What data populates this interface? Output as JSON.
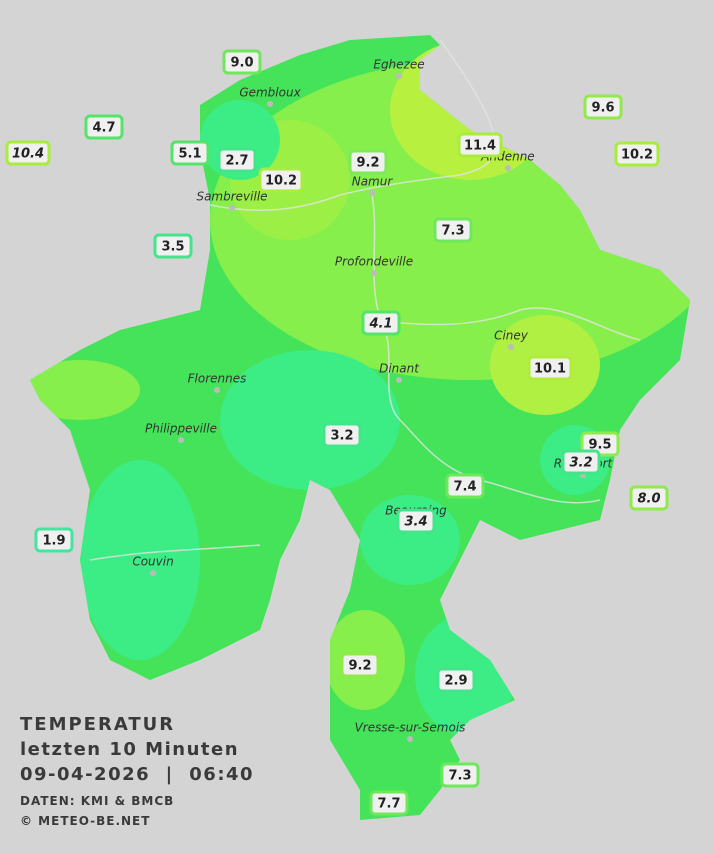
{
  "legend": {
    "title": "TEMPERATUR",
    "period": "letzten 10 Minuten",
    "datetime": "09-04-2026  |  06:40",
    "source": "DATEN: KMI & BMCB",
    "copyright": "© METEO-BE.NET"
  },
  "cities": [
    "Eghezee",
    "Gembloux",
    "Andenne",
    "Namur",
    "Sambreville",
    "Profondeville",
    "Ciney",
    "Dinant",
    "Florennes",
    "Philippeville",
    "Rochefort",
    "Beauraing",
    "Couvin",
    "Vresse-sur-Semois"
  ],
  "stations": [
    {
      "value": "9.0",
      "color": "#6ee85a"
    },
    {
      "value": "4.7",
      "color": "#55e36a"
    },
    {
      "value": "10.4",
      "color": "#a8ec3c",
      "italic": true
    },
    {
      "value": "5.1",
      "color": "#55e36a"
    },
    {
      "value": "2.7",
      "color": "#44e58a"
    },
    {
      "value": "10.2",
      "color": "#a8ec3c"
    },
    {
      "value": "9.2",
      "color": "#7ee85a"
    },
    {
      "value": "11.4",
      "color": "#a8ec3c"
    },
    {
      "value": "9.6",
      "color": "#8fea4a"
    },
    {
      "value": "10.2",
      "color": "#a8ec3c"
    },
    {
      "value": "3.5",
      "color": "#44e58a"
    },
    {
      "value": "7.3",
      "color": "#6ee85a"
    },
    {
      "value": "4.1",
      "color": "#55e36a",
      "italic": true
    },
    {
      "value": "10.1",
      "color": "#b0ec3c"
    },
    {
      "value": "3.2",
      "color": "#44e58a"
    },
    {
      "value": "9.5",
      "color": "#8fea4a"
    },
    {
      "value": "3.2",
      "color": "#44e58a",
      "italic": true
    },
    {
      "value": "7.4",
      "color": "#6ee85a"
    },
    {
      "value": "8.0",
      "color": "#8fea4a",
      "italic": true
    },
    {
      "value": "3.4",
      "color": "#44e58a",
      "italic": true
    },
    {
      "value": "1.9",
      "color": "#44e5a0"
    },
    {
      "value": "9.2",
      "color": "#8fea4a"
    },
    {
      "value": "2.9",
      "color": "#44e58a"
    },
    {
      "value": "7.3",
      "color": "#6ee85a"
    },
    {
      "value": "7.7",
      "color": "#6ee85a"
    }
  ]
}
